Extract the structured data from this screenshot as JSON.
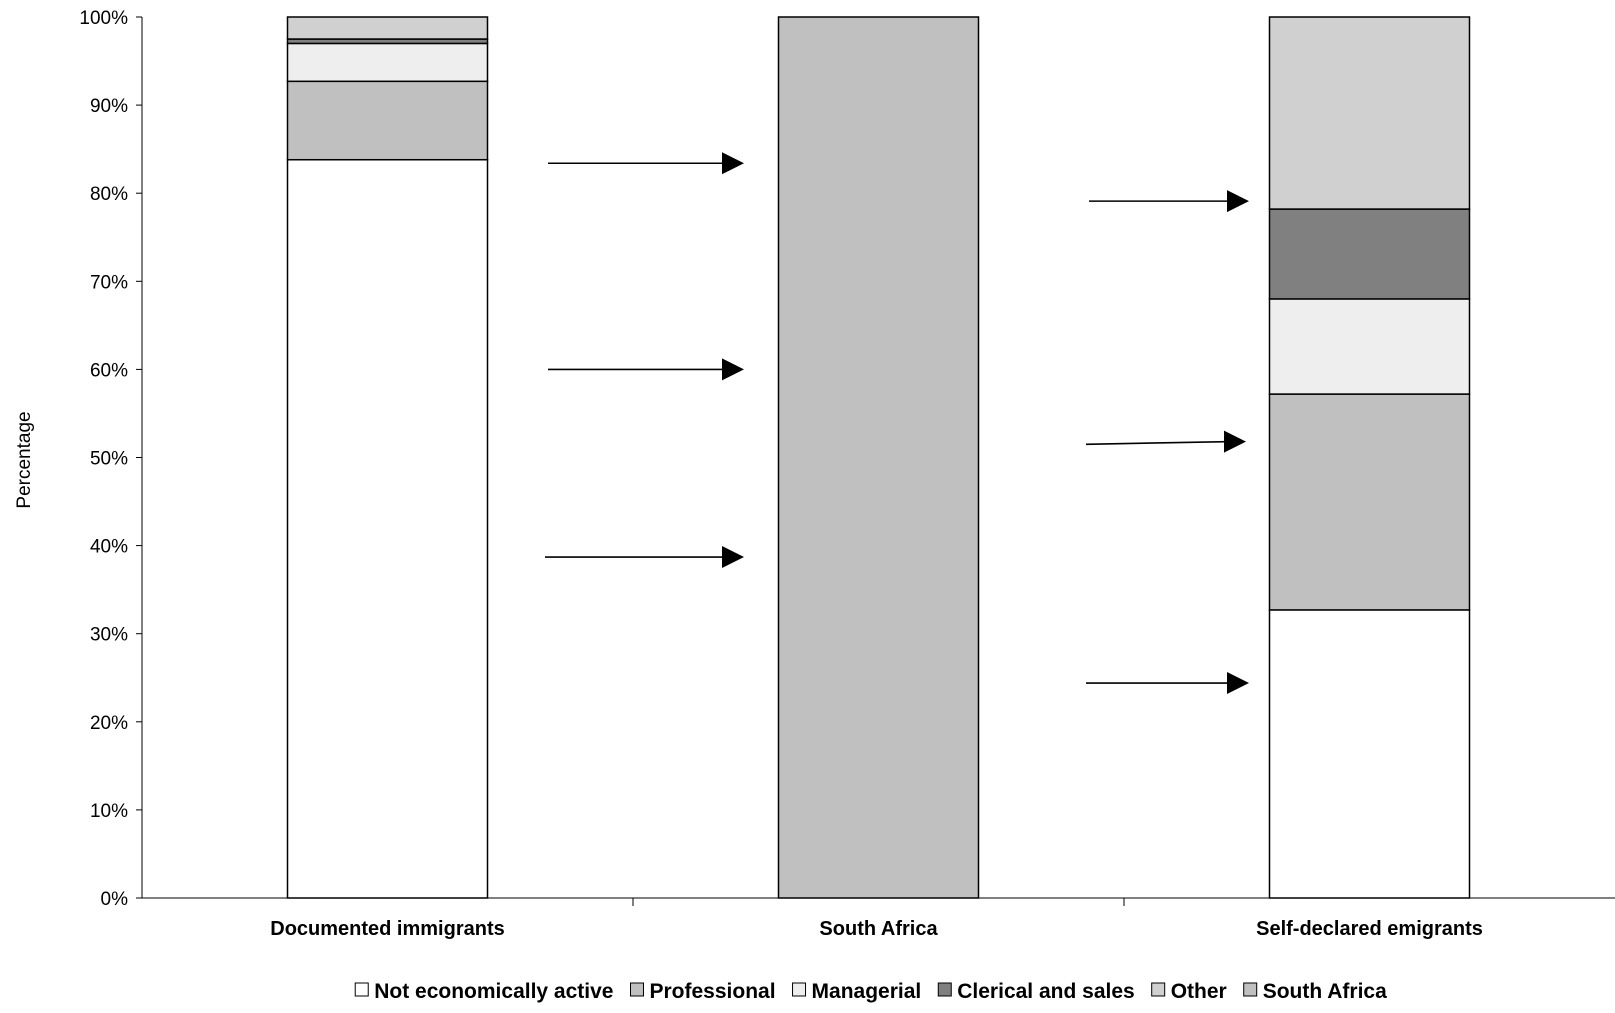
{
  "chart_data": {
    "type": "bar",
    "stacked": true,
    "categories": [
      "Documented immigrants",
      "South Africa",
      "Self-declared emigrants"
    ],
    "series": [
      {
        "name": "Not economically active",
        "color": "#ffffff",
        "values": [
          83.8,
          0,
          32.7
        ]
      },
      {
        "name": "Professional",
        "color": "#c0c0c0",
        "values": [
          8.9,
          0,
          24.5
        ]
      },
      {
        "name": "Managerial",
        "color": "#eeeeee",
        "values": [
          4.3,
          0,
          10.8
        ]
      },
      {
        "name": "Clerical and sales",
        "color": "#808080",
        "values": [
          0.5,
          0,
          10.2
        ]
      },
      {
        "name": "Other",
        "color": "#d0d0d0",
        "values": [
          2.5,
          0,
          21.8
        ]
      },
      {
        "name": "South Africa",
        "color": "#c0c0c0",
        "values": [
          0,
          100,
          0
        ]
      }
    ],
    "ylabel": "Percentage",
    "xlabel": "",
    "ylim": [
      0,
      100
    ],
    "yticks": [
      "0%",
      "10%",
      "20%",
      "30%",
      "40%",
      "50%",
      "60%",
      "70%",
      "80%",
      "90%",
      "100%"
    ],
    "grid": false,
    "legend_position": "bottom",
    "annotations": "arrows from the first bar to the second bar and from the second bar to the third bar"
  }
}
